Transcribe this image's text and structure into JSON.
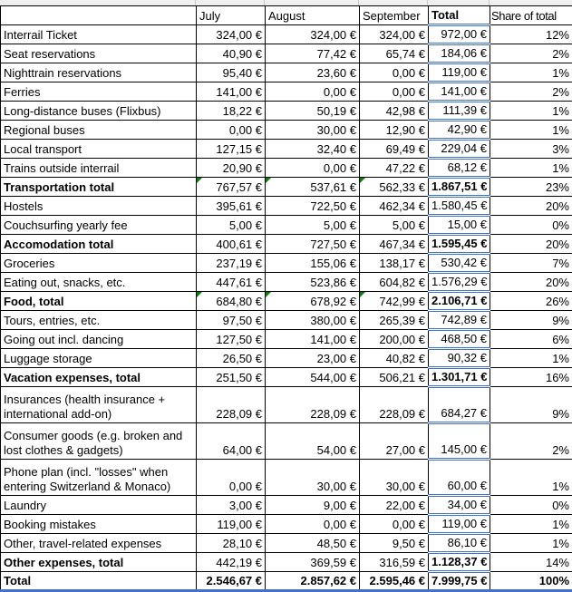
{
  "colors": {
    "grid_border": "#000000",
    "accent_blue": "#4472c4",
    "error_indicator_green": "#0f7b0f",
    "cropped_row_bg": "#f0f0f0",
    "cropped_row_line": "#c8c8c8"
  },
  "table": {
    "columns": [
      "",
      "July",
      "August",
      "September",
      "Total",
      "Share of total"
    ],
    "rows": [
      {
        "label": "Interrail Ticket",
        "july": "324,00 €",
        "august": "324,00 €",
        "september": "324,00 €",
        "total": "972,00 €",
        "share": "12%",
        "style": "normal",
        "lines": 1,
        "triangles": []
      },
      {
        "label": "Seat reservations",
        "july": "40,90 €",
        "august": "77,42 €",
        "september": "65,74 €",
        "total": "184,06 €",
        "share": "2%",
        "style": "normal",
        "lines": 1,
        "triangles": []
      },
      {
        "label": "Nighttrain reservations",
        "july": "95,40 €",
        "august": "23,60 €",
        "september": "0,00 €",
        "total": "119,00 €",
        "share": "1%",
        "style": "normal",
        "lines": 1,
        "triangles": []
      },
      {
        "label": "Ferries",
        "july": "141,00 €",
        "august": "0,00 €",
        "september": "0,00 €",
        "total": "141,00 €",
        "share": "2%",
        "style": "normal",
        "lines": 1,
        "triangles": []
      },
      {
        "label": "Long-distance buses (Flixbus)",
        "july": "18,22 €",
        "august": "50,19 €",
        "september": "42,98 €",
        "total": "111,39 €",
        "share": "1%",
        "style": "normal",
        "lines": 1,
        "triangles": []
      },
      {
        "label": "Regional buses",
        "july": "0,00 €",
        "august": "30,00 €",
        "september": "12,90 €",
        "total": "42,90 €",
        "share": "1%",
        "style": "normal",
        "lines": 1,
        "triangles": []
      },
      {
        "label": "Local transport",
        "july": "127,15 €",
        "august": "32,40 €",
        "september": "69,49 €",
        "total": "229,04 €",
        "share": "3%",
        "style": "normal",
        "lines": 1,
        "triangles": []
      },
      {
        "label": "Trains outside interrail",
        "july": "20,90 €",
        "august": "0,00 €",
        "september": "47,22 €",
        "total": "68,12 €",
        "share": "1%",
        "style": "normal",
        "lines": 1,
        "triangles": []
      },
      {
        "label": "Transportation total",
        "july": "767,57 €",
        "august": "537,61 €",
        "september": "562,33 €",
        "total": "1.867,51 €",
        "share": "23%",
        "style": "subtotal",
        "lines": 1,
        "triangles": [
          "july",
          "august",
          "september"
        ]
      },
      {
        "label": "Hostels",
        "july": "395,61 €",
        "august": "722,50 €",
        "september": "462,34 €",
        "total": "1.580,45 €",
        "share": "20%",
        "style": "normal",
        "lines": 1,
        "triangles": []
      },
      {
        "label": "Couchsurfing yearly fee",
        "july": "5,00 €",
        "august": "5,00 €",
        "september": "5,00 €",
        "total": "15,00 €",
        "share": "0%",
        "style": "normal",
        "lines": 1,
        "triangles": []
      },
      {
        "label": "Accomodation total",
        "july": "400,61 €",
        "august": "727,50 €",
        "september": "467,34 €",
        "total": "1.595,45 €",
        "share": "20%",
        "style": "subtotal",
        "lines": 1,
        "triangles": []
      },
      {
        "label": "Groceries",
        "july": "237,19 €",
        "august": "155,06 €",
        "september": "138,17 €",
        "total": "530,42 €",
        "share": "7%",
        "style": "normal",
        "lines": 1,
        "triangles": []
      },
      {
        "label": "Eating out, snacks, etc.",
        "july": "447,61 €",
        "august": "523,86 €",
        "september": "604,82 €",
        "total": "1.576,29 €",
        "share": "20%",
        "style": "normal",
        "lines": 1,
        "triangles": []
      },
      {
        "label": "Food, total",
        "july": "684,80 €",
        "august": "678,92 €",
        "september": "742,99 €",
        "total": "2.106,71 €",
        "share": "26%",
        "style": "subtotal",
        "lines": 1,
        "triangles": [
          "july",
          "august",
          "september"
        ]
      },
      {
        "label": "Tours, entries, etc.",
        "july": "97,50 €",
        "august": "380,00 €",
        "september": "265,39 €",
        "total": "742,89 €",
        "share": "9%",
        "style": "normal",
        "lines": 1,
        "triangles": []
      },
      {
        "label": "Going out incl. dancing",
        "july": "127,50 €",
        "august": "141,00 €",
        "september": "200,00 €",
        "total": "468,50 €",
        "share": "6%",
        "style": "normal",
        "lines": 1,
        "triangles": []
      },
      {
        "label": "Luggage storage",
        "july": "26,50 €",
        "august": "23,00 €",
        "september": "40,82 €",
        "total": "90,32 €",
        "share": "1%",
        "style": "normal",
        "lines": 1,
        "triangles": []
      },
      {
        "label": "Vacation expenses, total",
        "july": "251,50 €",
        "august": "544,00 €",
        "september": "506,21 €",
        "total": "1.301,71 €",
        "share": "16%",
        "style": "subtotal",
        "lines": 1,
        "triangles": []
      },
      {
        "label": "Insurances (health insurance +\ninternational add-on)",
        "july": "228,09 €",
        "august": "228,09 €",
        "september": "228,09 €",
        "total": "684,27 €",
        "share": "9%",
        "style": "normal",
        "lines": 2,
        "triangles": []
      },
      {
        "label": "Consumer goods (e.g. broken and\nlost clothes & gadgets)",
        "july": "64,00 €",
        "august": "54,00 €",
        "september": "27,00 €",
        "total": "145,00 €",
        "share": "2%",
        "style": "normal",
        "lines": 2,
        "triangles": []
      },
      {
        "label": "Phone plan (incl. \"losses\" when\nentering Switzerland & Monaco)",
        "july": "0,00 €",
        "august": "30,00 €",
        "september": "30,00 €",
        "total": "60,00 €",
        "share": "1%",
        "style": "normal",
        "lines": 2,
        "triangles": []
      },
      {
        "label": "Laundry",
        "july": "3,00 €",
        "august": "9,00 €",
        "september": "22,00 €",
        "total": "34,00 €",
        "share": "0%",
        "style": "normal",
        "lines": 1,
        "triangles": []
      },
      {
        "label": "Booking mistakes",
        "july": "119,00 €",
        "august": "0,00 €",
        "september": "0,00 €",
        "total": "119,00 €",
        "share": "1%",
        "style": "normal",
        "lines": 1,
        "triangles": []
      },
      {
        "label": "Other, travel-related expenses",
        "july": "28,10 €",
        "august": "48,50 €",
        "september": "9,50 €",
        "total": "86,10 €",
        "share": "1%",
        "style": "normal",
        "lines": 1,
        "triangles": []
      },
      {
        "label": "Other expenses, total",
        "july": "442,19 €",
        "august": "369,59 €",
        "september": "316,59 €",
        "total": "1.128,37 €",
        "share": "14%",
        "style": "subtotal",
        "lines": 1,
        "triangles": []
      },
      {
        "label": "Total",
        "july": "2.546,67 €",
        "august": "2.857,62 €",
        "september": "2.595,46 €",
        "total": "7.999,75 €",
        "share": "100%",
        "style": "grand",
        "lines": 1,
        "triangles": []
      }
    ]
  }
}
